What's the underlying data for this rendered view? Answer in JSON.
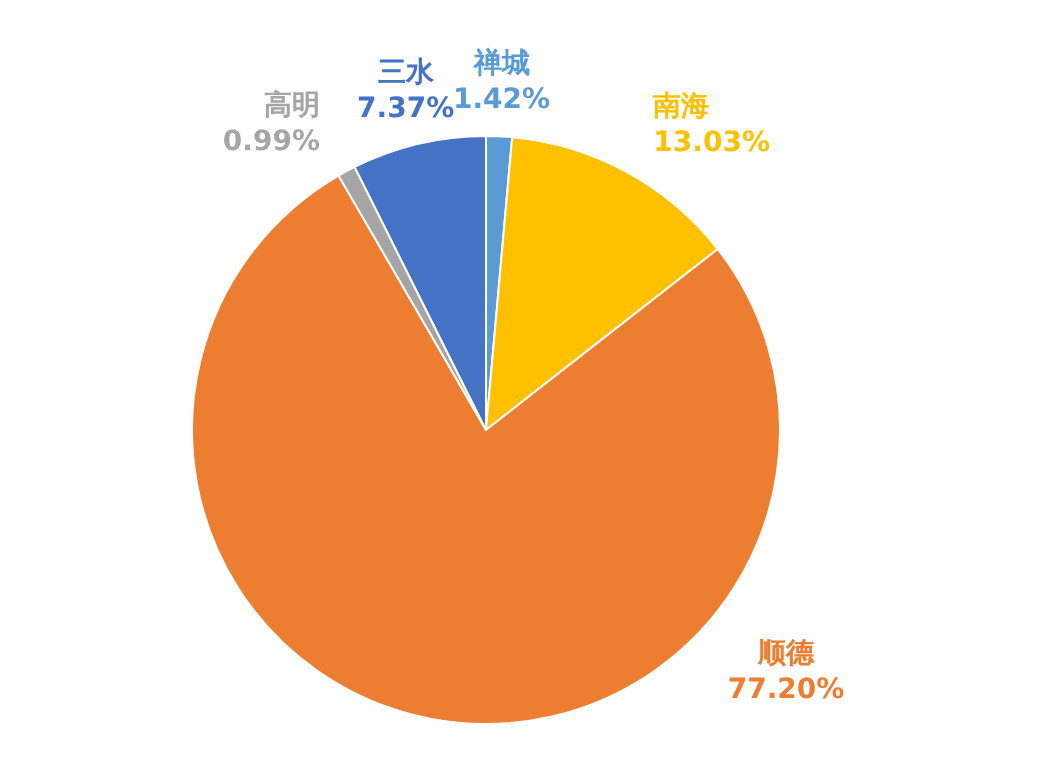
{
  "chart_data": {
    "type": "pie",
    "categories": [
      "禅城",
      "南海",
      "顺德",
      "高明",
      "三水"
    ],
    "values": [
      1.42,
      13.03,
      77.2,
      0.99,
      7.37
    ],
    "colors": [
      "#5b9bd5",
      "#ffc000",
      "#ed7d31",
      "#a5a5a5",
      "#4472c4"
    ],
    "value_labels": [
      "1.42%",
      "13.03%",
      "77.20%",
      "0.99%",
      "7.37%"
    ]
  }
}
